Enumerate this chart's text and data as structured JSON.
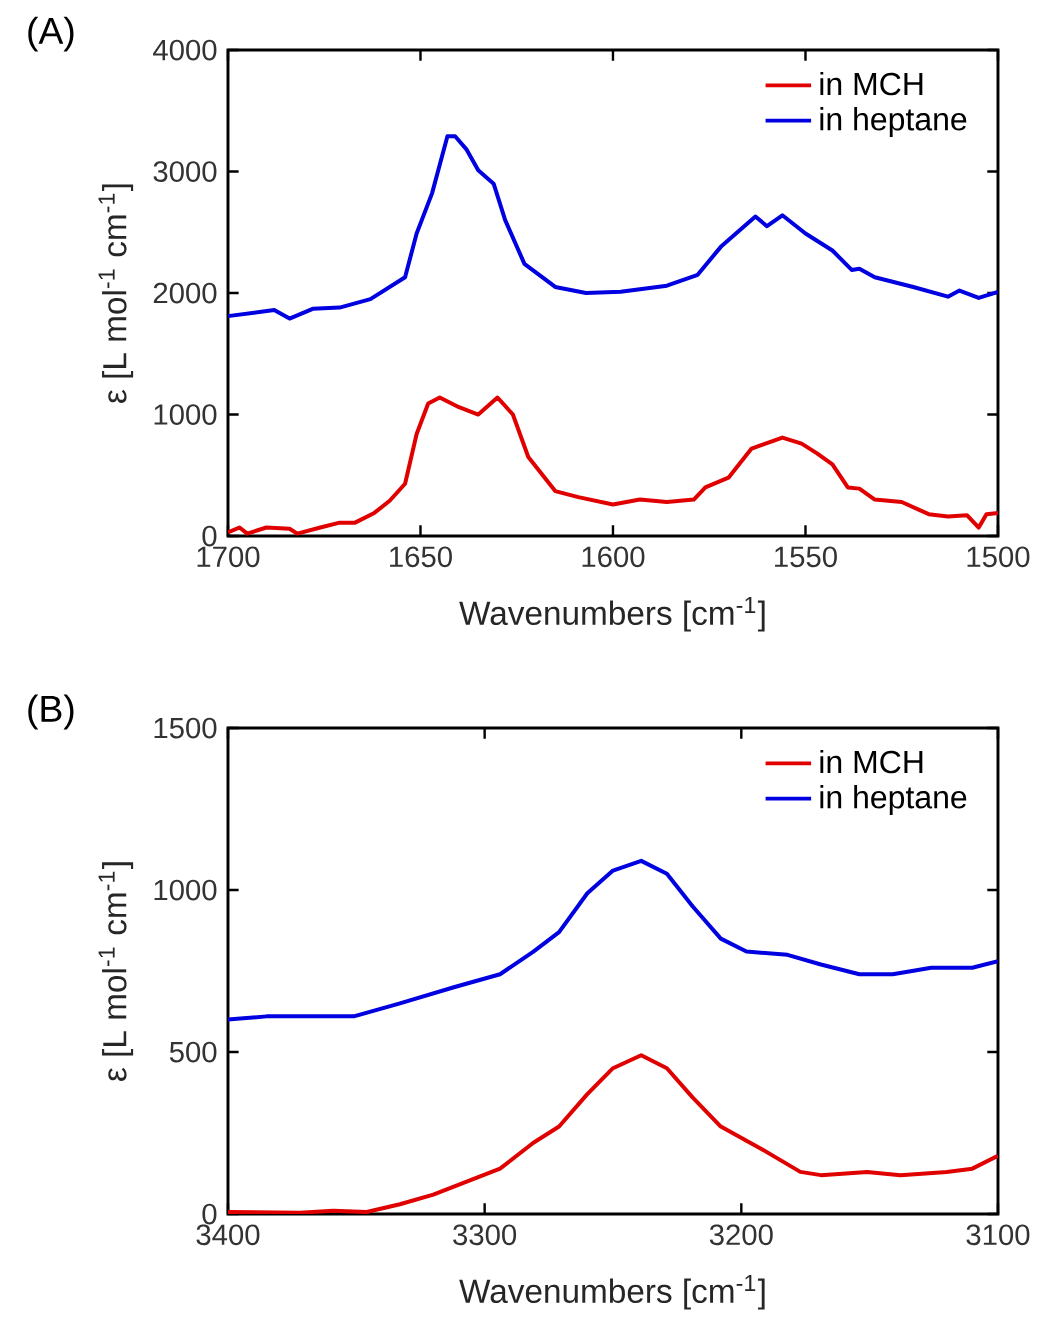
{
  "chart_data": [
    {
      "type": "line",
      "title": "(A)",
      "xlabel": "Wavenumbers [cm$^{-1}$]",
      "ylabel": "ε [L mol$^{-1}$ cm$^{-1}$]",
      "xlim": [
        1700,
        1500
      ],
      "ylim": [
        0,
        4000
      ],
      "xticks": [
        1700,
        1650,
        1600,
        1550,
        1500
      ],
      "yticks": [
        0,
        1000,
        2000,
        3000,
        4000
      ],
      "legend": "top right",
      "series": [
        {
          "name": "in MCH",
          "color": "#e00000",
          "x": [
            1700,
            1697,
            1695,
            1690,
            1684,
            1682,
            1676,
            1671,
            1667,
            1662,
            1658,
            1654,
            1651,
            1648,
            1645,
            1640,
            1635,
            1630,
            1626,
            1622,
            1615,
            1609,
            1600,
            1593,
            1586,
            1579,
            1576,
            1570,
            1564,
            1556,
            1551,
            1547,
            1543,
            1539,
            1536,
            1532,
            1525,
            1518,
            1513,
            1508,
            1505,
            1503,
            1500
          ],
          "values": [
            30,
            70,
            20,
            70,
            60,
            20,
            70,
            110,
            110,
            190,
            290,
            430,
            840,
            1090,
            1140,
            1060,
            1000,
            1140,
            1000,
            650,
            370,
            320,
            260,
            300,
            280,
            300,
            400,
            480,
            720,
            810,
            760,
            680,
            590,
            400,
            390,
            300,
            280,
            180,
            160,
            170,
            70,
            180,
            190
          ]
        },
        {
          "name": "in heptane",
          "color": "#0000e0",
          "x": [
            1700,
            1688,
            1684,
            1678,
            1671,
            1663,
            1654,
            1651,
            1647,
            1643,
            1641,
            1638,
            1635,
            1631,
            1628,
            1623,
            1615,
            1607,
            1598,
            1586,
            1578,
            1572,
            1563,
            1560,
            1556,
            1550,
            1543,
            1538,
            1536,
            1532,
            1522,
            1513,
            1510,
            1505,
            1500
          ],
          "values": [
            1810,
            1860,
            1790,
            1870,
            1880,
            1950,
            2130,
            2490,
            2820,
            3290,
            3290,
            3180,
            3010,
            2900,
            2600,
            2240,
            2050,
            2000,
            2010,
            2060,
            2150,
            2380,
            2630,
            2550,
            2640,
            2490,
            2350,
            2190,
            2200,
            2130,
            2050,
            1970,
            2020,
            1960,
            2010
          ]
        }
      ]
    },
    {
      "type": "line",
      "title": "(B)",
      "xlabel": "Wavenumbers [cm$^{-1}$]",
      "ylabel": "ε [L mol$^{-1}$ cm$^{-1}$]",
      "xlim": [
        3400,
        3100
      ],
      "ylim": [
        0,
        1500
      ],
      "xticks": [
        3400,
        3300,
        3200,
        3100
      ],
      "yticks": [
        0,
        500,
        1000,
        1500
      ],
      "legend": "top right",
      "series": [
        {
          "name": "in MCH",
          "color": "#e00000",
          "x": [
            3400,
            3372,
            3359,
            3346,
            3333,
            3320,
            3307,
            3294,
            3281,
            3271,
            3260,
            3250,
            3239,
            3229,
            3219,
            3208,
            3192,
            3177,
            3169,
            3151,
            3138,
            3120,
            3110,
            3100
          ],
          "values": [
            6,
            4,
            10,
            6,
            30,
            60,
            100,
            140,
            220,
            270,
            370,
            450,
            490,
            450,
            360,
            270,
            200,
            130,
            120,
            130,
            120,
            130,
            140,
            180
          ]
        },
        {
          "name": "in heptane",
          "color": "#0000e0",
          "x": [
            3400,
            3385,
            3351,
            3333,
            3312,
            3294,
            3281,
            3271,
            3260,
            3250,
            3239,
            3229,
            3219,
            3208,
            3198,
            3182,
            3169,
            3154,
            3141,
            3126,
            3110,
            3100
          ],
          "values": [
            600,
            610,
            610,
            650,
            700,
            740,
            810,
            870,
            990,
            1060,
            1090,
            1050,
            950,
            850,
            810,
            800,
            770,
            740,
            740,
            760,
            760,
            780
          ]
        }
      ]
    }
  ]
}
